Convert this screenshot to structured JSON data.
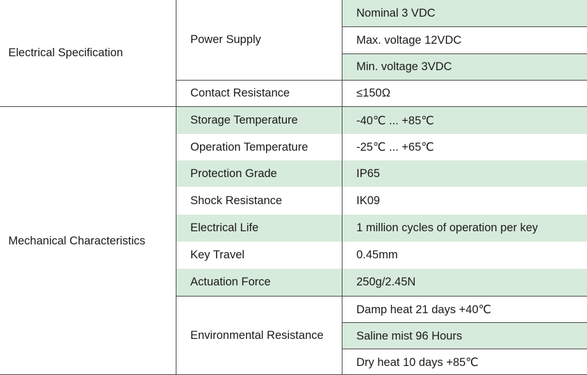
{
  "spec_table": {
    "categories": {
      "electrical": "Electrical Specification",
      "mechanical": "Mechanical Characteristics"
    },
    "params": {
      "power_supply": "Power Supply",
      "contact_resistance": "Contact Resistance",
      "storage_temperature": "Storage Temperature",
      "operation_temperature": "Operation Temperature",
      "protection_grade": "Protection Grade",
      "shock_resistance": "Shock Resistance",
      "electrical_life": "Electrical Life",
      "key_travel": "Key Travel",
      "actuation_force": "Actuation Force",
      "environmental_resistance": "Environmental Resistance"
    },
    "values": {
      "nominal_voltage": "Nominal 3 VDC",
      "max_voltage": "Max. voltage 12VDC",
      "min_voltage": "Min. voltage 3VDC",
      "contact_resistance": "≤150Ω",
      "storage_temperature": "-40℃ ... +85℃",
      "operation_temperature": "-25℃ ... +65℃",
      "protection_grade": "IP65",
      "shock_resistance": "IK09",
      "electrical_life": "1 million cycles of operation per key",
      "key_travel": "0.45mm",
      "actuation_force": "250g/2.45N",
      "damp_heat": "Damp heat 21 days +40℃",
      "saline_mist": "Saline mist 96 Hours",
      "dry_heat": "Dry heat 10 days +85℃"
    },
    "colors": {
      "row_highlight": "#d7ebdc",
      "border": "#4a4a4a",
      "text": "#1a1a1a"
    }
  }
}
